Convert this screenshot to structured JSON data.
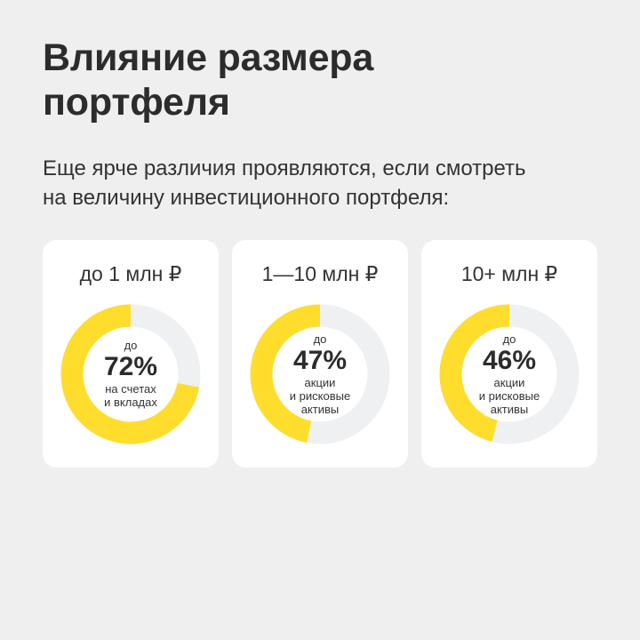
{
  "header": {
    "title_line1": "Влияние размера",
    "title_line2": "портфеля",
    "subtitle_line1": "Еще ярче различия проявляются, если смотреть",
    "subtitle_line2": "на величину инвестиционного портфеля:"
  },
  "colors": {
    "accent": "#ffdd2d",
    "track": "#eef0f1",
    "card": "#ffffff",
    "background": "#efefef"
  },
  "chart_data": [
    {
      "type": "pie",
      "category": "до 1 млн ₽",
      "prefix": "до",
      "value": 72,
      "value_label": "72%",
      "description": "на счетах\nи вкладах"
    },
    {
      "type": "pie",
      "category": "1—10 млн ₽",
      "prefix": "до",
      "value": 47,
      "value_label": "47%",
      "description": "акции\nи рисковые\nактивы"
    },
    {
      "type": "pie",
      "category": "10+ млн ₽",
      "prefix": "до",
      "value": 46,
      "value_label": "46%",
      "description": "акции\nи рисковые\nактивы"
    }
  ]
}
